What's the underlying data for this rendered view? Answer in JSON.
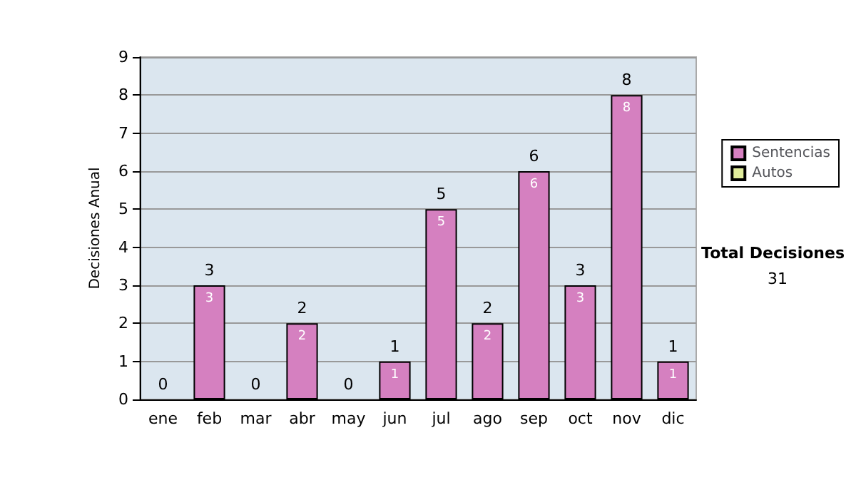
{
  "chart_data": {
    "type": "bar",
    "stacked": true,
    "ylabel": "Decisiones Anual",
    "categories": [
      "ene",
      "feb",
      "mar",
      "abr",
      "may",
      "jun",
      "jul",
      "ago",
      "sep",
      "oct",
      "nov",
      "dic"
    ],
    "series": [
      {
        "name": "Sentencias",
        "color": "#d580c0",
        "values": [
          0,
          3,
          0,
          2,
          0,
          1,
          5,
          2,
          6,
          3,
          8,
          1
        ],
        "value_labels": [
          null,
          "3",
          null,
          "2",
          null,
          "1",
          "5",
          "2",
          "6",
          "3",
          "8",
          "1"
        ]
      },
      {
        "name": "Autos",
        "color": "#e0ec9c",
        "values": [
          0,
          0,
          0,
          0,
          0,
          0,
          0,
          0,
          0,
          0,
          0,
          0
        ]
      }
    ],
    "totals": [
      "0",
      "3",
      "0",
      "2",
      "0",
      "1",
      "5",
      "2",
      "6",
      "3",
      "8",
      "1"
    ],
    "ylim": [
      0,
      9
    ],
    "yticks": [
      0,
      1,
      2,
      3,
      4,
      5,
      6,
      7,
      8,
      9
    ],
    "grid": "y",
    "legend": "right",
    "annotations": [
      "Total Decisiones",
      "31"
    ]
  }
}
